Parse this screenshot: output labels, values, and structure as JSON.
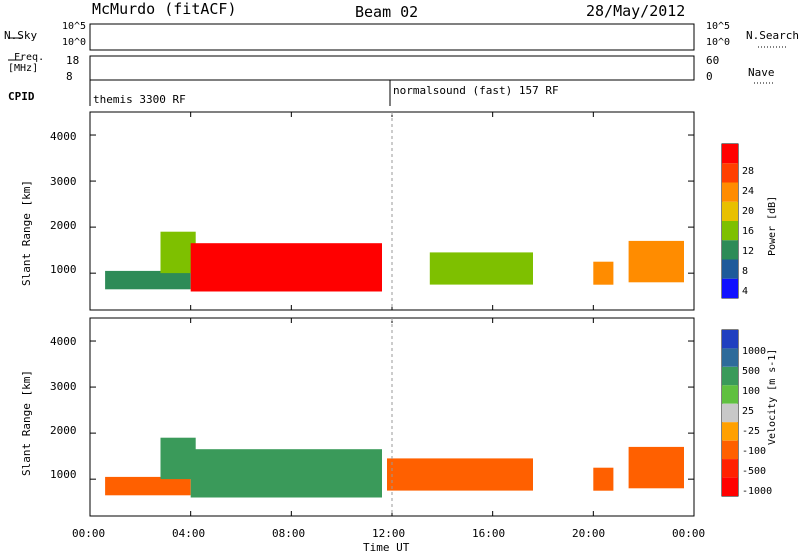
{
  "header": {
    "station": "McMurdo (fitACF)",
    "beam": "Beam 02",
    "date": "28/May/2012"
  },
  "top_panels": {
    "nsky_label": "N.Sky",
    "nsearch_label": "N.Search",
    "nsky_ticks": [
      "10^5",
      "10^0"
    ],
    "nsearch_ticks": [
      "10^5",
      "10^0"
    ],
    "freq_label_1": "Freq.",
    "freq_label_2": "[MHz]",
    "freq_ticks": [
      "18",
      "8"
    ],
    "nave_label": "Nave",
    "nave_ticks": [
      "60",
      "0"
    ],
    "cpid_label": "CPID",
    "cpid_segments": [
      {
        "label": "themis 3300 RF",
        "start_hour": 0
      },
      {
        "label": "normalsound (fast) 157 RF",
        "start_hour": 12
      }
    ]
  },
  "chart_data": [
    {
      "type": "heatmap",
      "name": "power",
      "ylabel": "Slant Range [km]",
      "xlabel": "Time UT",
      "ylim": [
        200,
        4500
      ],
      "xlim": [
        0,
        24
      ],
      "yticks": [
        1000,
        2000,
        3000,
        4000
      ],
      "xticks": [
        "00:00",
        "04:00",
        "08:00",
        "12:00",
        "16:00",
        "20:00",
        "00:00"
      ],
      "colorbar": {
        "label": "Power [dB]",
        "ticks": [
          "28",
          "24",
          "20",
          "16",
          "12",
          "8",
          "4"
        ],
        "colors": [
          "#ff0000",
          "#ff4000",
          "#ff8c00",
          "#e8c000",
          "#7ec000",
          "#2e8b57",
          "#1e5a9a",
          "#1010ff"
        ]
      },
      "regions": [
        {
          "t0": 0.6,
          "t1": 4.0,
          "r0": 650,
          "r1": 1050,
          "value": 10
        },
        {
          "t0": 2.8,
          "t1": 4.2,
          "r0": 1000,
          "r1": 1900,
          "value": 12
        },
        {
          "t0": 4.0,
          "t1": 11.6,
          "r0": 600,
          "r1": 1650,
          "value": 28
        },
        {
          "t0": 13.5,
          "t1": 17.6,
          "r0": 750,
          "r1": 1450,
          "value": 12
        },
        {
          "t0": 20.0,
          "t1": 20.8,
          "r0": 750,
          "r1": 1250,
          "value": 20
        },
        {
          "t0": 21.4,
          "t1": 23.6,
          "r0": 800,
          "r1": 1700,
          "value": 20
        }
      ]
    },
    {
      "type": "heatmap",
      "name": "velocity",
      "ylabel": "Slant Range [km]",
      "xlabel": "Time UT",
      "ylim": [
        200,
        4500
      ],
      "xlim": [
        0,
        24
      ],
      "yticks": [
        1000,
        2000,
        3000,
        4000
      ],
      "xticks": [
        "00:00",
        "04:00",
        "08:00",
        "12:00",
        "16:00",
        "20:00",
        "00:00"
      ],
      "colorbar": {
        "label": "Velocity [m s-1]",
        "ticks": [
          "1000",
          "500",
          "100",
          "25",
          "-25",
          "-100",
          "-500",
          "-1000"
        ],
        "colors": [
          "#2040c0",
          "#2e6b9a",
          "#3a9a5a",
          "#60c040",
          "#c8c8c8",
          "#ffa000",
          "#ff6000",
          "#ff2000",
          "#ff0000"
        ]
      },
      "regions": [
        {
          "t0": 0.6,
          "t1": 4.0,
          "r0": 650,
          "r1": 1050,
          "value": -100
        },
        {
          "t0": 2.8,
          "t1": 4.2,
          "r0": 1000,
          "r1": 1900,
          "value": 100
        },
        {
          "t0": 4.0,
          "t1": 11.6,
          "r0": 600,
          "r1": 1650,
          "value": 100
        },
        {
          "t0": 11.8,
          "t1": 17.6,
          "r0": 750,
          "r1": 1450,
          "value": -100
        },
        {
          "t0": 20.0,
          "t1": 20.8,
          "r0": 750,
          "r1": 1250,
          "value": -100
        },
        {
          "t0": 21.4,
          "t1": 23.6,
          "r0": 800,
          "r1": 1700,
          "value": -100
        }
      ]
    }
  ]
}
